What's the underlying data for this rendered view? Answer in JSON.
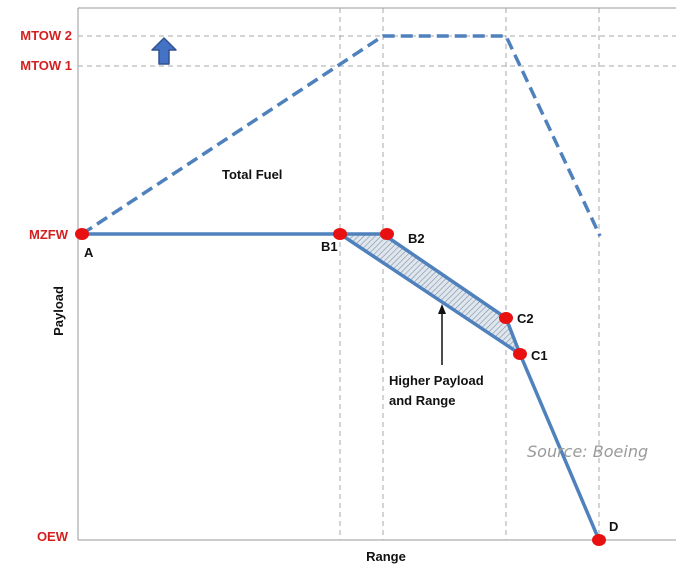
{
  "y_axis": {
    "title": "Payload",
    "levels": [
      "MTOW 2",
      "MTOW 1",
      "MZFW",
      "OEW"
    ]
  },
  "x_axis": {
    "title": "Range"
  },
  "points": [
    "A",
    "B1",
    "B2",
    "C2",
    "C1",
    "D"
  ],
  "annotations": {
    "total_fuel": "Total Fuel",
    "higher_line1": "Higher Payload",
    "higher_line2": "and Range",
    "source": "Source: Boeing"
  },
  "colors": {
    "line": "#4f81bd",
    "point": "#e81010",
    "label_red": "#d42020",
    "arrow": "#2f6db5",
    "grid": "#aaaaaa"
  },
  "icons": {
    "up_arrow": "up-arrow-icon"
  }
}
